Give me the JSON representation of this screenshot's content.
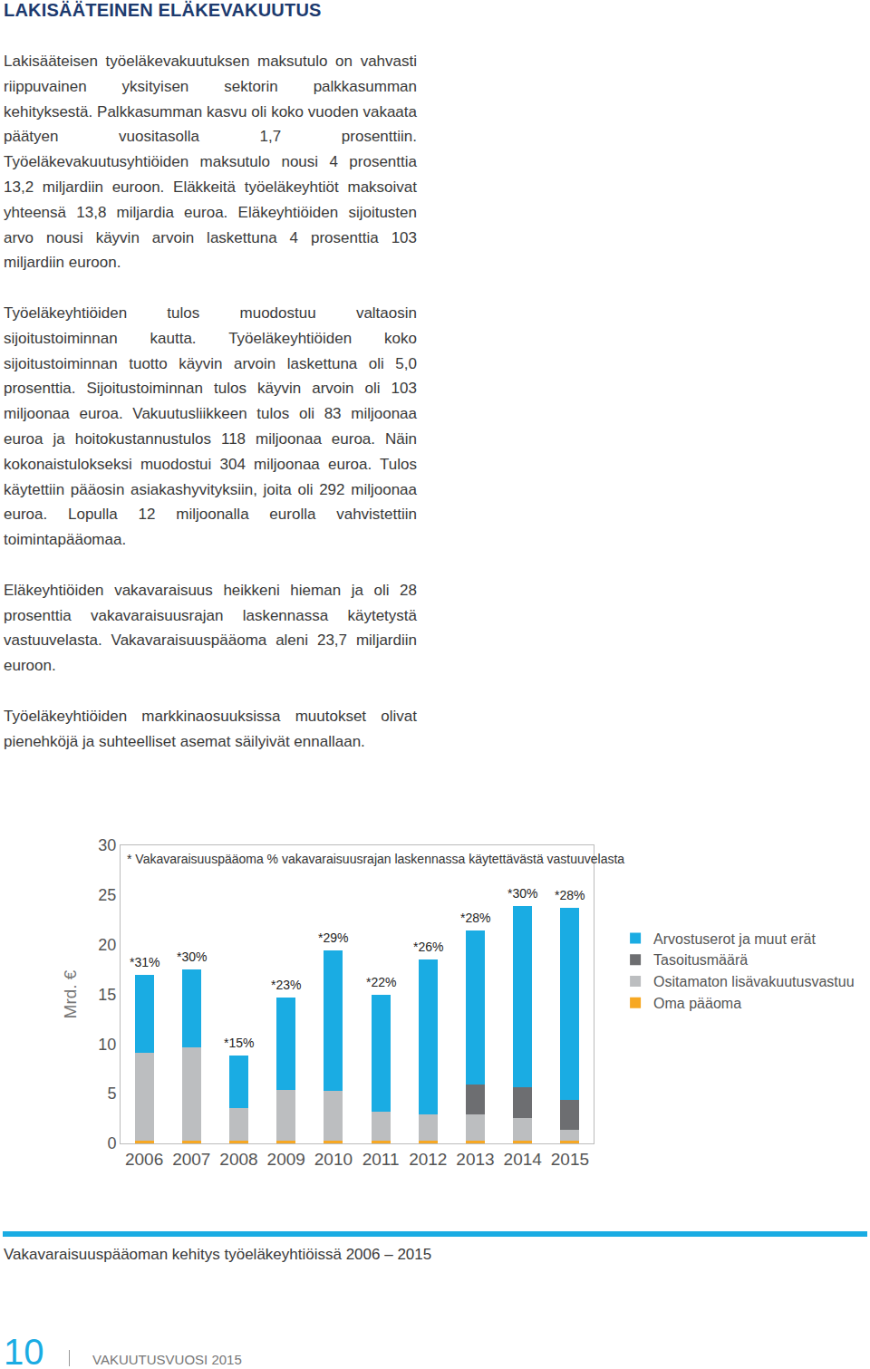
{
  "header": {
    "title": "LAKISÄÄTEINEN ELÄKEVAKUUTUS"
  },
  "paragraphs": [
    "Lakisääteisen työeläkevakuutuksen maksutulo on vahvasti riippuvainen yksityisen sektorin palkkasumman kehityksestä. Palkkasumman kasvu oli koko vuoden vakaata päätyen vuositasolla 1,7 prosenttiin. Työeläkevakuutusyhtiöiden maksutulo nousi 4 prosenttia 13,2 miljardiin euroon. Eläkkeitä työeläkeyhtiöt maksoivat yhteensä 13,8 miljardia euroa. Eläkeyhtiöiden sijoitusten arvo nousi käyvin arvoin laskettuna 4 prosenttia 103 miljardiin euroon.",
    "Työeläkeyhtiöiden tulos muodostuu valtaosin sijoitustoiminnan kautta. Työeläkeyhtiöiden koko sijoitustoiminnan tuotto käyvin arvoin laskettuna oli 5,0 prosenttia. Sijoitustoiminnan tulos käyvin arvoin oli 103 miljoonaa euroa. Vakuutusliikkeen tulos oli 83 miljoonaa euroa ja hoitokustannustulos 118 miljoonaa euroa. Näin kokonaistulokseksi muodostui 304 miljoonaa euroa. Tulos käytettiin pääosin asiakashyvityksiin, joita oli 292 miljoonaa euroa. Lopulla 12 miljoonalla eurolla vahvistettiin toimintapääomaa.",
    "Eläkeyhtiöiden vakavaraisuus heikkeni hieman ja oli 28 prosenttia vakavaraisuusrajan laskennassa käytetystä vastuuvelasta. Vakavaraisuuspääoma aleni 23,7 miljardiin euroon.",
    "Työeläkeyhtiöiden markkinaosuuksissa muutokset olivat pienehköjä ja suhteelliset asemat säilyivät ennallaan."
  ],
  "chart_data": {
    "type": "bar",
    "stacked": true,
    "subtitle": "* Vakavaraisuuspääoma % vakavaraisuusrajan laskennassa käytettävästä vastuuvelasta",
    "y_label": "Mrd. €",
    "categories": [
      "2006",
      "2007",
      "2008",
      "2009",
      "2010",
      "2011",
      "2012",
      "2013",
      "2014",
      "2015"
    ],
    "series": [
      {
        "name": "Oma pääoma",
        "color": "#f7a823",
        "values": [
          0.3,
          0.3,
          0.3,
          0.3,
          0.3,
          0.3,
          0.3,
          0.3,
          0.3,
          0.3
        ]
      },
      {
        "name": "Ositamaton lisävakuutusvastuu",
        "color": "#bcbec0",
        "values": [
          8.8,
          9.4,
          3.3,
          5.1,
          5.0,
          2.9,
          2.6,
          2.6,
          2.25,
          1.1
        ]
      },
      {
        "name": "Tasoitusmäärä",
        "color": "#6d6e71",
        "values": [
          0,
          0,
          0,
          0,
          0,
          0,
          0,
          3.0,
          3.1,
          3.0
        ]
      },
      {
        "name": "Arvostuserot ja muut erät",
        "color": "#1aace3",
        "values": [
          7.9,
          7.85,
          5.2,
          9.3,
          14.1,
          11.8,
          15.6,
          15.5,
          18.2,
          19.3
        ]
      }
    ],
    "annotations": [
      {
        "x": "2006",
        "text": "*31%"
      },
      {
        "x": "2007",
        "text": "*30%"
      },
      {
        "x": "2008",
        "text": "*15%"
      },
      {
        "x": "2009",
        "text": "*23%"
      },
      {
        "x": "2010",
        "text": "*29%"
      },
      {
        "x": "2011",
        "text": "*22%"
      },
      {
        "x": "2012",
        "text": "*26%"
      },
      {
        "x": "2013",
        "text": "*28%"
      },
      {
        "x": "2014",
        "text": "*30%"
      },
      {
        "x": "2015",
        "text": "*28%"
      }
    ],
    "ylim": [
      0,
      30
    ],
    "yticks": [
      0,
      5,
      10,
      15,
      20,
      25,
      30
    ],
    "grid": false,
    "legend": "right"
  },
  "caption": "Vakavaraisuuspääoman kehitys työeläkeyhtiöissä 2006 – 2015",
  "footer": {
    "page": "10",
    "publication": "VAKUUTUSVUOSI 2015"
  }
}
